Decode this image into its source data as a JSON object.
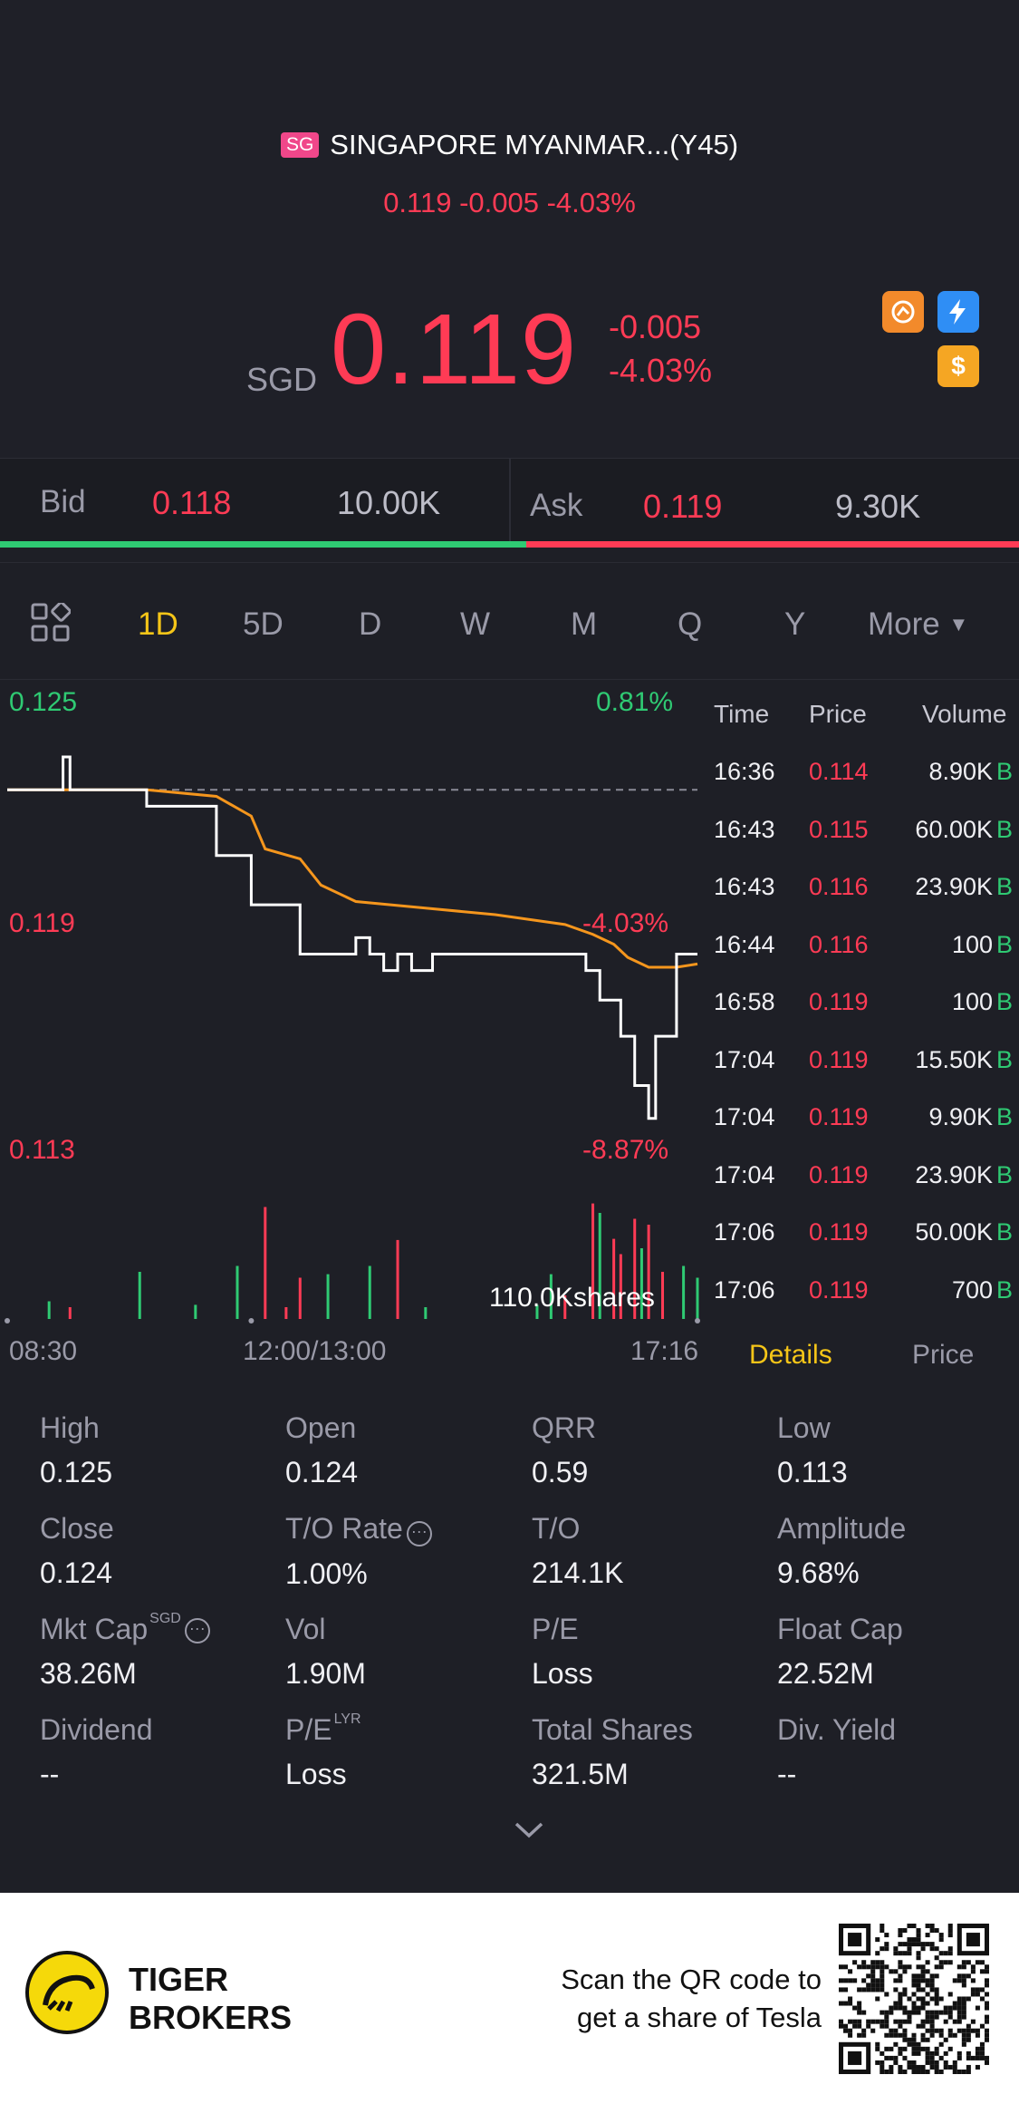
{
  "header": {
    "market_badge": "SG",
    "title": "SINGAPORE MYANMAR...(Y45)",
    "sub_quote": "0.119 -0.005 -4.03%",
    "currency": "SGD",
    "price": "0.119",
    "change": "-0.005",
    "change_pct": "-4.03%",
    "colors": {
      "down": "#ff3b55",
      "up": "#2fca73",
      "accent": "#f5c518"
    }
  },
  "bid_ask": {
    "bid_label": "Bid",
    "bid_price": "0.118",
    "bid_qty": "10.00K",
    "ask_label": "Ask",
    "ask_price": "0.119",
    "ask_qty": "9.30K",
    "bid_share": 0.516
  },
  "tabs": {
    "items": [
      "1D",
      "5D",
      "D",
      "W",
      "M",
      "Q",
      "Y"
    ],
    "more": "More",
    "active": "1D"
  },
  "chart": {
    "y_top": "0.125",
    "y_mid": "0.119",
    "y_low": "0.113",
    "pct_top": "0.81%",
    "pct_mid": "-4.03%",
    "pct_low": "-8.87%",
    "volume_label": "110.0Kshares",
    "x_labels": [
      "08:30",
      "12:00/13:00",
      "17:16"
    ]
  },
  "chart_data": {
    "type": "line",
    "ylim": [
      0.113,
      0.125
    ],
    "series": [],
    "price_points": [
      [
        0,
        0.124
      ],
      [
        8,
        0.124
      ],
      [
        8,
        0.125
      ],
      [
        9,
        0.125
      ],
      [
        9,
        0.124
      ],
      [
        20,
        0.124
      ],
      [
        20,
        0.1235
      ],
      [
        30,
        0.1235
      ],
      [
        30,
        0.122
      ],
      [
        35,
        0.122
      ],
      [
        35,
        0.1205
      ],
      [
        42,
        0.1205
      ],
      [
        42,
        0.119
      ],
      [
        50,
        0.119
      ],
      [
        50,
        0.1195
      ],
      [
        52,
        0.1195
      ],
      [
        52,
        0.119
      ],
      [
        54,
        0.119
      ],
      [
        54,
        0.1185
      ],
      [
        56,
        0.1185
      ],
      [
        56,
        0.119
      ],
      [
        58,
        0.119
      ],
      [
        58,
        0.1185
      ],
      [
        61,
        0.1185
      ],
      [
        61,
        0.119
      ],
      [
        83,
        0.119
      ],
      [
        83,
        0.1185
      ],
      [
        85,
        0.1185
      ],
      [
        85,
        0.1176
      ],
      [
        88,
        0.1176
      ],
      [
        88,
        0.1165
      ],
      [
        90,
        0.1165
      ],
      [
        90,
        0.115
      ],
      [
        92,
        0.115
      ],
      [
        92,
        0.114
      ],
      [
        93,
        0.114
      ],
      [
        93,
        0.1165
      ],
      [
        96,
        0.1165
      ],
      [
        96,
        0.119
      ],
      [
        99,
        0.119
      ]
    ],
    "avg_points": [
      [
        0,
        0.124
      ],
      [
        20,
        0.124
      ],
      [
        30,
        0.1238
      ],
      [
        35,
        0.1232
      ],
      [
        37,
        0.1222
      ],
      [
        42,
        0.1219
      ],
      [
        45,
        0.1211
      ],
      [
        50,
        0.1206
      ],
      [
        60,
        0.1204
      ],
      [
        70,
        0.1202
      ],
      [
        80,
        0.1199
      ],
      [
        84,
        0.1196
      ],
      [
        87,
        0.1193
      ],
      [
        89,
        0.1189
      ],
      [
        92,
        0.1186
      ],
      [
        96,
        0.1186
      ],
      [
        99,
        0.1187
      ]
    ],
    "prev_close": 0.124,
    "volume_bars": [
      {
        "x": 6,
        "h": 0.15,
        "c": "green"
      },
      {
        "x": 9,
        "h": 0.1,
        "c": "red"
      },
      {
        "x": 19,
        "h": 0.4,
        "c": "green"
      },
      {
        "x": 27,
        "h": 0.12,
        "c": "green"
      },
      {
        "x": 33,
        "h": 0.45,
        "c": "green"
      },
      {
        "x": 37,
        "h": 0.95,
        "c": "red"
      },
      {
        "x": 40,
        "h": 0.1,
        "c": "red"
      },
      {
        "x": 42,
        "h": 0.35,
        "c": "red"
      },
      {
        "x": 46,
        "h": 0.38,
        "c": "green"
      },
      {
        "x": 52,
        "h": 0.45,
        "c": "green"
      },
      {
        "x": 56,
        "h": 0.67,
        "c": "red"
      },
      {
        "x": 60,
        "h": 0.1,
        "c": "green"
      },
      {
        "x": 76,
        "h": 0.12,
        "c": "green"
      },
      {
        "x": 78,
        "h": 0.38,
        "c": "green"
      },
      {
        "x": 80,
        "h": 0.2,
        "c": "red"
      },
      {
        "x": 84,
        "h": 0.98,
        "c": "red"
      },
      {
        "x": 85,
        "h": 0.9,
        "c": "green"
      },
      {
        "x": 87,
        "h": 0.68,
        "c": "red"
      },
      {
        "x": 88,
        "h": 0.55,
        "c": "red"
      },
      {
        "x": 90,
        "h": 0.85,
        "c": "red"
      },
      {
        "x": 91,
        "h": 0.6,
        "c": "green"
      },
      {
        "x": 92,
        "h": 0.8,
        "c": "red"
      },
      {
        "x": 94,
        "h": 0.4,
        "c": "red"
      },
      {
        "x": 97,
        "h": 0.45,
        "c": "green"
      },
      {
        "x": 99,
        "h": 0.35,
        "c": "green"
      }
    ]
  },
  "trades": {
    "headers": [
      "Time",
      "Price",
      "Volume"
    ],
    "rows": [
      {
        "time": "16:36",
        "price": "0.114",
        "volume": "8.90K",
        "side": "B"
      },
      {
        "time": "16:43",
        "price": "0.115",
        "volume": "60.00K",
        "side": "B"
      },
      {
        "time": "16:43",
        "price": "0.116",
        "volume": "23.90K",
        "side": "B"
      },
      {
        "time": "16:44",
        "price": "0.116",
        "volume": "100",
        "side": "B"
      },
      {
        "time": "16:58",
        "price": "0.119",
        "volume": "100",
        "side": "B"
      },
      {
        "time": "17:04",
        "price": "0.119",
        "volume": "15.50K",
        "side": "B"
      },
      {
        "time": "17:04",
        "price": "0.119",
        "volume": "9.90K",
        "side": "B"
      },
      {
        "time": "17:04",
        "price": "0.119",
        "volume": "23.90K",
        "side": "B"
      },
      {
        "time": "17:06",
        "price": "0.119",
        "volume": "50.00K",
        "side": "B"
      },
      {
        "time": "17:06",
        "price": "0.119",
        "volume": "700",
        "side": "B"
      }
    ],
    "tab_details": "Details",
    "tab_price": "Price"
  },
  "details": {
    "items": [
      {
        "label": "High",
        "value": "0.125"
      },
      {
        "label": "Open",
        "value": "0.124"
      },
      {
        "label": "QRR",
        "value": "0.59"
      },
      {
        "label": "Low",
        "value": "0.113"
      },
      {
        "label": "Close",
        "value": "0.124"
      },
      {
        "label": "T/O Rate",
        "value": "1.00%"
      },
      {
        "label": "T/O",
        "value": "214.1K"
      },
      {
        "label": "Amplitude",
        "value": "9.68%"
      },
      {
        "label": "Mkt Cap",
        "value": "38.26M"
      },
      {
        "label": "Vol",
        "value": "1.90M"
      },
      {
        "label": "P/E",
        "value": "Loss"
      },
      {
        "label": "Float Cap",
        "value": "22.52M"
      },
      {
        "label": "Dividend",
        "value": "--"
      },
      {
        "label": "P/E",
        "value": "Loss"
      },
      {
        "label": "Total Shares",
        "value": "321.5M"
      },
      {
        "label": "Div. Yield",
        "value": "--"
      }
    ],
    "mktcap_sup": "SGD",
    "pe_sup": "LYR"
  },
  "footer": {
    "brand_line1": "TIGER",
    "brand_line2": "BROKERS",
    "scan_line1": "Scan the QR code to",
    "scan_line2": "get a share of Tesla"
  }
}
